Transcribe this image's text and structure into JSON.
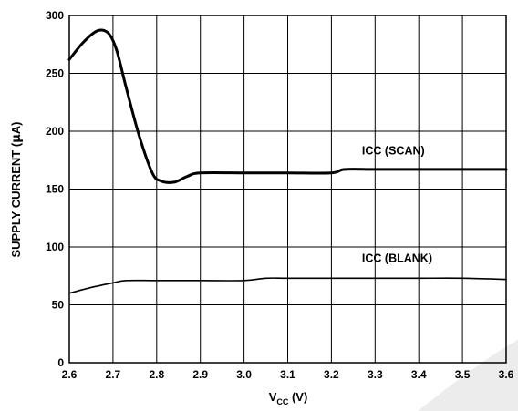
{
  "chart_data": {
    "type": "line",
    "xlabel": "V",
    "xlabel_sub": "CC",
    "xlabel_unit": " (V)",
    "ylabel": "SUPPLY CURRENT (",
    "ylabel_mu": "μ",
    "ylabel_unit": "A)",
    "xlim": [
      2.6,
      3.6
    ],
    "ylim": [
      0,
      300
    ],
    "x_ticks": [
      "2.6",
      "2.7",
      "2.8",
      "2.9",
      "3.0",
      "3.1",
      "3.2",
      "3.3",
      "3.4",
      "3.5",
      "3.6"
    ],
    "y_ticks": [
      "0",
      "50",
      "100",
      "150",
      "200",
      "250",
      "300"
    ],
    "grid": true,
    "series": [
      {
        "name": "ICC (SCAN)",
        "x": [
          2.6,
          2.63,
          2.66,
          2.68,
          2.695,
          2.71,
          2.73,
          2.76,
          2.79,
          2.81,
          2.84,
          2.87,
          2.9,
          3.0,
          3.1,
          3.2,
          3.23,
          3.3,
          3.4,
          3.5,
          3.6
        ],
        "y": [
          262,
          276,
          286,
          287,
          282,
          268,
          238,
          196,
          164,
          157,
          156,
          161,
          164,
          164,
          164,
          164,
          167,
          167,
          167,
          167,
          167
        ]
      },
      {
        "name": "ICC (BLANK)",
        "x": [
          2.6,
          2.65,
          2.7,
          2.73,
          2.8,
          2.9,
          3.0,
          3.05,
          3.1,
          3.2,
          3.3,
          3.4,
          3.5,
          3.6
        ],
        "y": [
          60,
          65,
          69,
          71,
          71,
          71,
          71,
          73,
          73,
          73,
          73,
          73,
          73,
          72
        ]
      }
    ],
    "annotations": [
      {
        "text": "ICC (SCAN)",
        "x": 3.27,
        "y": 180
      },
      {
        "text": "ICC (BLANK)",
        "x": 3.27,
        "y": 87
      }
    ]
  }
}
